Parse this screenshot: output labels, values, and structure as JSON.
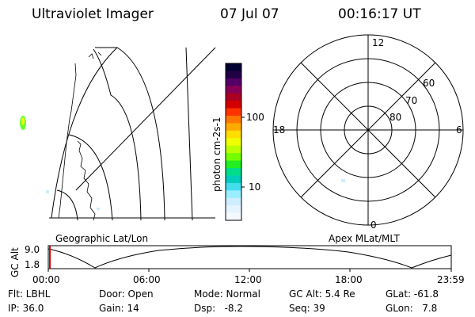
{
  "header": {
    "title": "Ultraviolet Imager",
    "date": "07 Jul 07",
    "time": "00:16:17 UT"
  },
  "colorbar": {
    "label": "photon cm-2s-1",
    "ticks": [
      "100",
      "10"
    ],
    "colors": [
      "#000033",
      "#220044",
      "#550066",
      "#880055",
      "#aa0022",
      "#d40000",
      "#ff3300",
      "#ff7700",
      "#ffaa00",
      "#ffdd00",
      "#eeff00",
      "#bbff00",
      "#77ff00",
      "#22ee22",
      "#00dd88",
      "#00ccbb",
      "#44ddee",
      "#99eeff",
      "#cceeff",
      "#e6f4ff",
      "#f4f9ff"
    ]
  },
  "geo_map": {
    "caption": "Geographic Lat/Lon"
  },
  "polar": {
    "caption": "Apex MLat/MLT",
    "mlt_labels": {
      "top": "12",
      "left": "18",
      "right": "6",
      "bottom": "0"
    },
    "lat_labels": [
      "60",
      "70",
      "80"
    ]
  },
  "altitude_plot": {
    "ylabel": "GC Alt",
    "yticks": [
      "9.0",
      "1.8"
    ],
    "xticks": [
      "00:00",
      "06:00",
      "12:00",
      "18:00",
      "23:59"
    ]
  },
  "info": {
    "row1": [
      "Flt: LBHL",
      "Door: Open",
      "Mode: Normal",
      "GC Alt: 5.4 Re",
      "GLat: -61.8"
    ],
    "row2": [
      "IP: 36.0",
      "Gain: 14",
      "Dsp:   -8.2",
      "Seq: 39",
      "GLon:   7.8"
    ]
  }
}
